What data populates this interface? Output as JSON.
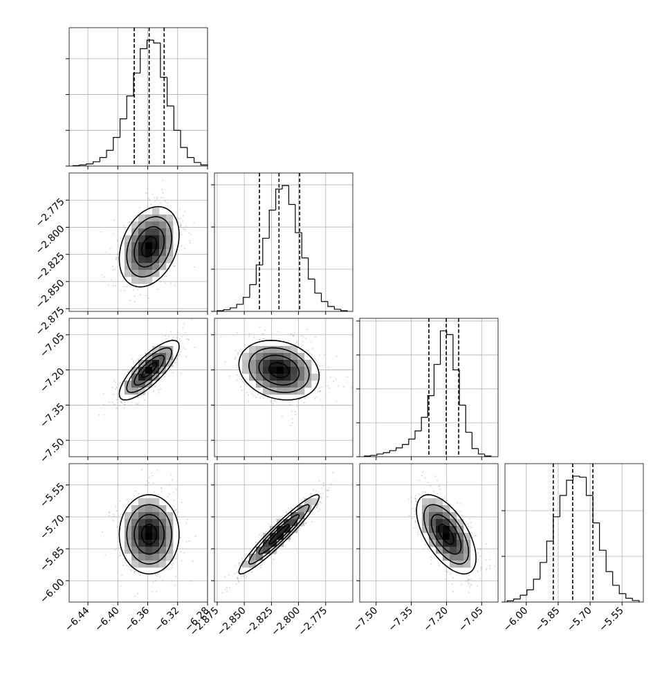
{
  "chart_data": {
    "type": "corner",
    "color": "#000000",
    "params": [
      {
        "xlim": [
          -6.465,
          -6.28
        ],
        "xticks": [
          {
            "value": -6.44,
            "label": "−6.44"
          },
          {
            "value": -6.4,
            "label": "−6.40"
          },
          {
            "value": -6.36,
            "label": "−6.36"
          },
          {
            "value": -6.32,
            "label": "−6.32"
          },
          {
            "value": -6.28,
            "label": "−6.28"
          }
        ],
        "bins": [
          -6.46,
          -6.451,
          -6.442,
          -6.433,
          -6.424,
          -6.415,
          -6.406,
          -6.397,
          -6.388,
          -6.379,
          -6.37,
          -6.361,
          -6.352,
          -6.343,
          -6.334,
          -6.325,
          -6.316,
          -6.307,
          -6.298,
          -6.289,
          -6.28
        ],
        "counts": [
          3,
          8,
          15,
          30,
          60,
          110,
          200,
          330,
          490,
          650,
          820,
          880,
          860,
          620,
          420,
          250,
          130,
          60,
          25,
          8
        ],
        "count_lim": [
          0,
          967
        ],
        "count_ticks": [
          0,
          250,
          500,
          750
        ],
        "quantiles": [
          -6.378,
          -6.358,
          -6.338
        ]
      },
      {
        "xlim": [
          -2.8775,
          -2.75
        ],
        "xticks": [
          {
            "value": -2.875,
            "label": "−2.875"
          },
          {
            "value": -2.85,
            "label": "−2.850"
          },
          {
            "value": -2.825,
            "label": "−2.825"
          },
          {
            "value": -2.8,
            "label": "−2.800"
          },
          {
            "value": -2.775,
            "label": "−2.775"
          }
        ],
        "bins": [
          -2.875,
          -2.869,
          -2.863,
          -2.857,
          -2.851,
          -2.845,
          -2.839,
          -2.833,
          -2.827,
          -2.821,
          -2.815,
          -2.809,
          -2.803,
          -2.797,
          -2.791,
          -2.785,
          -2.779,
          -2.773,
          -2.767,
          -2.761,
          -2.755
        ],
        "counts": [
          5,
          12,
          25,
          50,
          100,
          190,
          330,
          520,
          720,
          870,
          895,
          760,
          560,
          380,
          230,
          130,
          70,
          35,
          15,
          5
        ],
        "count_lim": [
          0,
          984
        ],
        "count_ticks": [
          0,
          300,
          600,
          900
        ],
        "quantiles": [
          -2.836,
          -2.818,
          -2.799
        ]
      },
      {
        "xlim": [
          -7.57,
          -6.98
        ],
        "xticks": [
          {
            "value": -7.5,
            "label": "−7.50"
          },
          {
            "value": -7.35,
            "label": "−7.35"
          },
          {
            "value": -7.2,
            "label": "−7.20"
          },
          {
            "value": -7.05,
            "label": "−7.05"
          }
        ],
        "bins": [
          -7.55,
          -7.523,
          -7.496,
          -7.469,
          -7.442,
          -7.415,
          -7.388,
          -7.361,
          -7.334,
          -7.307,
          -7.28,
          -7.253,
          -7.226,
          -7.199,
          -7.172,
          -7.145,
          -7.118,
          -7.091,
          -7.064,
          -7.037,
          -7.01
        ],
        "counts": [
          5,
          10,
          20,
          30,
          45,
          65,
          90,
          130,
          190,
          290,
          450,
          680,
          928,
          900,
          640,
          380,
          180,
          60,
          20,
          5
        ],
        "count_lim": [
          0,
          1020
        ],
        "count_ticks": [
          0,
          250,
          500,
          750,
          1000
        ],
        "quantiles": [
          -7.275,
          -7.201,
          -7.148
        ]
      },
      {
        "xlim": [
          -6.1,
          -5.45
        ],
        "xticks": [
          {
            "value": -6.0,
            "label": "−6.00"
          },
          {
            "value": -5.85,
            "label": "−5.85"
          },
          {
            "value": -5.7,
            "label": "−5.70"
          },
          {
            "value": -5.55,
            "label": "−5.55"
          }
        ],
        "bins": [
          -6.09,
          -6.059,
          -6.028,
          -5.997,
          -5.966,
          -5.935,
          -5.904,
          -5.873,
          -5.842,
          -5.811,
          -5.78,
          -5.749,
          -5.718,
          -5.687,
          -5.656,
          -5.625,
          -5.594,
          -5.563,
          -5.532,
          -5.501,
          -5.47
        ],
        "counts": [
          8,
          20,
          45,
          80,
          150,
          260,
          400,
          560,
          700,
          800,
          827,
          820,
          700,
          520,
          340,
          200,
          110,
          55,
          25,
          10
        ],
        "count_lim": [
          0,
          909
        ],
        "count_ticks": [
          0,
          300,
          600
        ],
        "quantiles": [
          -5.873,
          -5.782,
          -5.687
        ]
      }
    ],
    "correlations": [
      [
        0.3
      ],
      [
        0.8,
        -0.2
      ],
      [
        0.0,
        0.95,
        -0.6
      ]
    ]
  }
}
